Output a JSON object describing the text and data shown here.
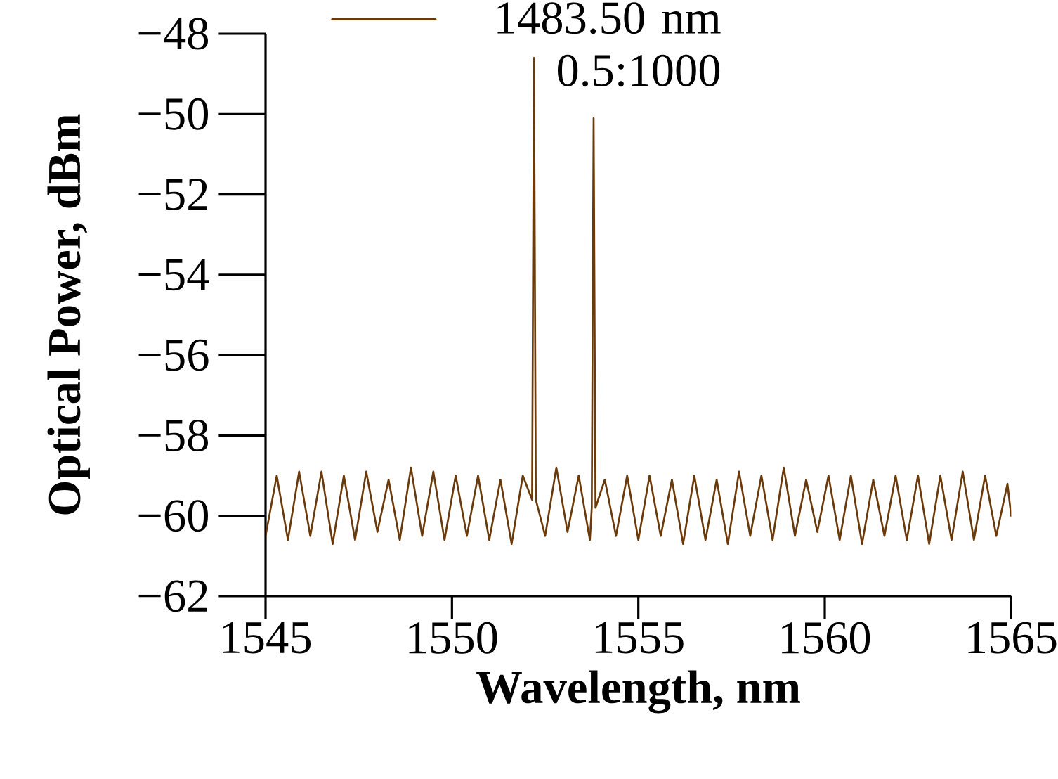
{
  "chart_data": {
    "type": "line",
    "xlabel": "Wavelength, nm",
    "ylabel": "Optical Power, dBm",
    "xlim": [
      1545,
      1565
    ],
    "xticks": [
      1545,
      1550,
      1555,
      1560,
      1565
    ],
    "ylim": [
      -62,
      -48
    ],
    "yticks": [
      {
        "value": -62,
        "label": "−62"
      },
      {
        "value": -60,
        "label": "−60"
      },
      {
        "value": -58,
        "label": "−58"
      },
      {
        "value": -56,
        "label": "−56"
      },
      {
        "value": -54,
        "label": "−54"
      },
      {
        "value": -52,
        "label": "−52"
      },
      {
        "value": -50,
        "label": "−50"
      },
      {
        "value": -48,
        "label": "−48"
      }
    ],
    "grid": false,
    "legend": "top",
    "marker": "none",
    "line_style": "solid",
    "series": [
      {
        "name": "1483.50 nm 0.5:1000",
        "color": "#6b3a0a",
        "x": [
          1545.0,
          1545.3,
          1545.6,
          1545.9,
          1546.2,
          1546.5,
          1546.8,
          1547.1,
          1547.4,
          1547.7,
          1548.0,
          1548.3,
          1548.6,
          1548.9,
          1549.2,
          1549.5,
          1549.8,
          1550.1,
          1550.4,
          1550.7,
          1551.0,
          1551.3,
          1551.6,
          1551.9,
          1552.15,
          1552.2,
          1552.25,
          1552.5,
          1552.8,
          1553.1,
          1553.4,
          1553.7,
          1553.75,
          1553.8,
          1553.85,
          1554.1,
          1554.4,
          1554.7,
          1555.0,
          1555.3,
          1555.6,
          1555.9,
          1556.2,
          1556.5,
          1556.8,
          1557.1,
          1557.4,
          1557.7,
          1558.0,
          1558.3,
          1558.6,
          1558.9,
          1559.2,
          1559.5,
          1559.8,
          1560.1,
          1560.4,
          1560.7,
          1561.0,
          1561.3,
          1561.6,
          1561.9,
          1562.2,
          1562.5,
          1562.8,
          1563.1,
          1563.4,
          1563.7,
          1564.0,
          1564.3,
          1564.6,
          1564.9,
          1565.0
        ],
        "values": [
          -60.5,
          -59.0,
          -60.6,
          -58.9,
          -60.5,
          -58.9,
          -60.7,
          -59.0,
          -60.6,
          -58.9,
          -60.4,
          -59.1,
          -60.6,
          -58.8,
          -60.5,
          -58.9,
          -60.6,
          -59.0,
          -60.5,
          -59.0,
          -60.6,
          -59.1,
          -60.7,
          -59.0,
          -59.6,
          -48.6,
          -59.6,
          -60.5,
          -58.8,
          -60.4,
          -59.0,
          -60.6,
          -59.8,
          -50.1,
          -59.8,
          -59.1,
          -60.5,
          -59.0,
          -60.6,
          -59.0,
          -60.5,
          -59.1,
          -60.7,
          -59.0,
          -60.6,
          -59.1,
          -60.7,
          -58.9,
          -60.5,
          -59.0,
          -60.6,
          -58.8,
          -60.5,
          -59.1,
          -60.4,
          -59.0,
          -60.6,
          -59.0,
          -60.7,
          -59.1,
          -60.5,
          -59.0,
          -60.6,
          -59.0,
          -60.7,
          -59.0,
          -60.6,
          -58.9,
          -60.6,
          -59.0,
          -60.5,
          -59.2,
          -60.0
        ]
      }
    ]
  }
}
